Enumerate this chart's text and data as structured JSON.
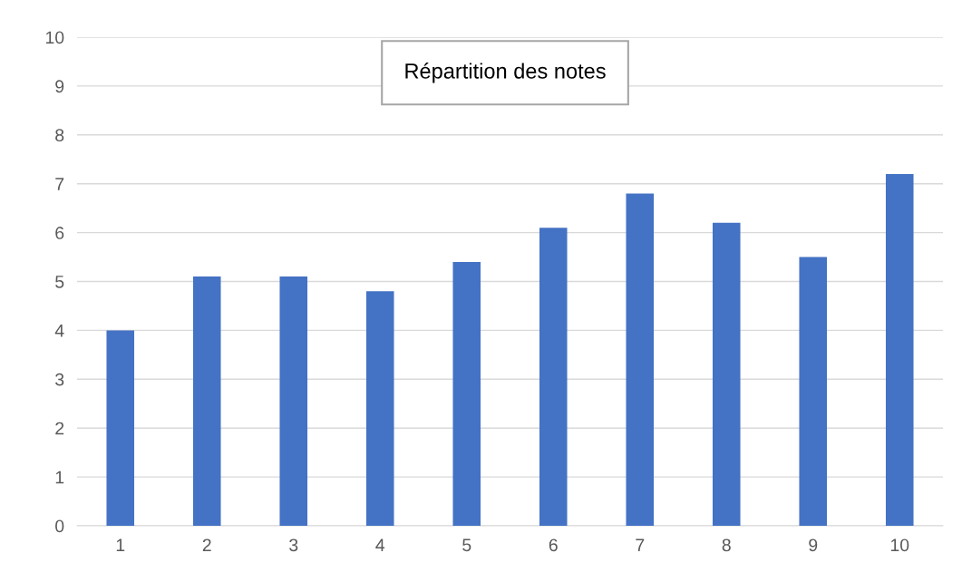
{
  "chart_data": {
    "type": "bar",
    "title": "Répartition des notes",
    "categories": [
      "1",
      "2",
      "3",
      "4",
      "5",
      "6",
      "7",
      "8",
      "9",
      "10"
    ],
    "values": [
      4.0,
      5.1,
      5.1,
      4.8,
      5.4,
      6.1,
      6.8,
      6.2,
      5.5,
      7.2
    ],
    "color": "#4472c4",
    "ylim": [
      0,
      10
    ],
    "yticks": [
      0,
      1,
      2,
      3,
      4,
      5,
      6,
      7,
      8,
      9,
      10
    ],
    "grid": "y",
    "legend": false
  }
}
